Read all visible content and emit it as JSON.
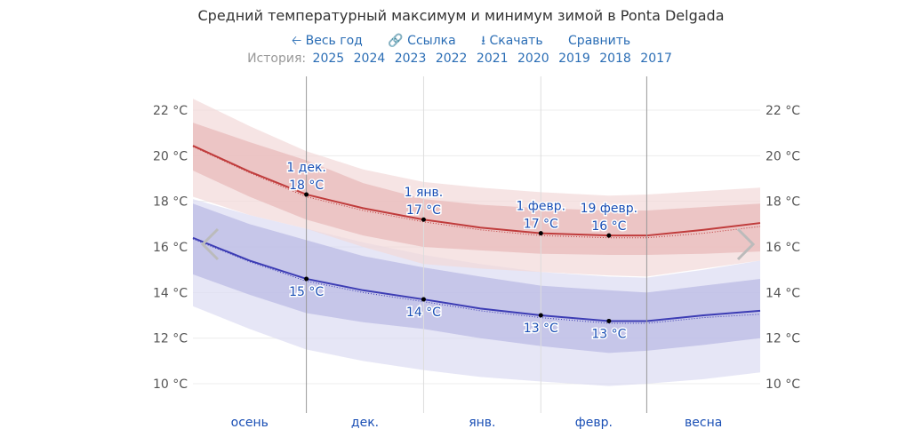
{
  "title": "Средний температурный максимум и минимум зимой в Ponta Delgada",
  "toolbar": {
    "full_year": "Весь год",
    "link": "Ссылка",
    "download": "Скачать",
    "compare": "Сравнить"
  },
  "history": {
    "label": "История:",
    "years": [
      "2025",
      "2024",
      "2023",
      "2022",
      "2021",
      "2020",
      "2019",
      "2018",
      "2017"
    ]
  },
  "chart_data": {
    "type": "area",
    "title": "Средний температурный максимум и минимум зимой в Ponta Delgada",
    "ylim": [
      9.2,
      23
    ],
    "y_ticks": [
      10,
      12,
      14,
      16,
      18,
      20,
      22
    ],
    "y_unit": "°C",
    "y_tick_labels": [
      "10 °C",
      "12 °C",
      "14 °C",
      "16 °C",
      "18 °C",
      "20 °C",
      "22 °C"
    ],
    "grid": true,
    "x_domain": [
      "11-01",
      "03-31"
    ],
    "x_sections": [
      {
        "label": "осень"
      },
      {
        "label": "дек."
      },
      {
        "label": "янв."
      },
      {
        "label": "февр."
      },
      {
        "label": "весна"
      }
    ],
    "x_dividers": [
      {
        "date": "12-01",
        "strong": true
      },
      {
        "date": "01-01",
        "strong": false
      },
      {
        "date": "02-01",
        "strong": false
      },
      {
        "date": "03-01",
        "strong": true
      }
    ],
    "x": [
      "11-01",
      "11-16",
      "12-01",
      "12-16",
      "01-01",
      "01-16",
      "02-01",
      "02-19",
      "03-01",
      "03-16",
      "03-31"
    ],
    "colors": {
      "max": "#c03c3c",
      "max_band_inner": "#e8b8b8",
      "max_band_outer": "#f2d8d8",
      "min": "#3c3cb4",
      "min_band_inner": "#b8b8e4",
      "min_band_outer": "#dcdcf2",
      "label": "#1a4fb5"
    },
    "max": {
      "mean": [
        20.44,
        19.3,
        18.3,
        17.7,
        17.2,
        16.85,
        16.6,
        16.5,
        16.5,
        16.75,
        17.05
      ],
      "p90": [
        22.5,
        21.3,
        20.2,
        19.4,
        18.85,
        18.6,
        18.4,
        18.25,
        18.3,
        18.45,
        18.6
      ],
      "p75": [
        21.45,
        20.6,
        19.8,
        18.8,
        18.1,
        17.85,
        17.7,
        17.6,
        17.6,
        17.75,
        17.9
      ],
      "p25": [
        19.35,
        18.2,
        17.2,
        16.5,
        16.0,
        15.85,
        15.7,
        15.65,
        15.65,
        15.7,
        15.8
      ],
      "p10": [
        18.2,
        17.4,
        16.8,
        16.0,
        15.25,
        15.05,
        14.9,
        14.75,
        14.7,
        15.05,
        15.4
      ],
      "dotted": [
        20.4,
        19.25,
        18.2,
        17.6,
        17.1,
        16.75,
        16.5,
        16.4,
        16.4,
        16.6,
        16.9
      ]
    },
    "min": {
      "mean": [
        16.4,
        15.4,
        14.6,
        14.1,
        13.7,
        13.3,
        13.0,
        12.75,
        12.75,
        13.0,
        13.2
      ],
      "p90": [
        18.1,
        17.4,
        16.8,
        16.2,
        15.65,
        15.25,
        14.9,
        14.7,
        14.65,
        15.0,
        15.4
      ],
      "p75": [
        17.9,
        17.0,
        16.3,
        15.6,
        15.1,
        14.7,
        14.3,
        14.1,
        14.0,
        14.3,
        14.6
      ],
      "p25": [
        14.8,
        13.9,
        13.1,
        12.7,
        12.4,
        12.0,
        11.65,
        11.35,
        11.45,
        11.7,
        12.0
      ],
      "p10": [
        13.4,
        12.4,
        11.5,
        11.0,
        10.6,
        10.3,
        10.1,
        9.9,
        10.0,
        10.2,
        10.5
      ],
      "dotted": [
        16.35,
        15.35,
        14.5,
        14.0,
        13.6,
        13.2,
        12.9,
        12.65,
        12.65,
        12.9,
        13.05
      ]
    },
    "annotations": [
      {
        "series": "max",
        "date": "12-01",
        "value": 18.3,
        "date_label": "1 дек.",
        "value_label": "18 °C"
      },
      {
        "series": "max",
        "date": "01-01",
        "value": 17.2,
        "date_label": "1 янв.",
        "value_label": "17 °C"
      },
      {
        "series": "max",
        "date": "02-01",
        "value": 16.6,
        "date_label": "1 февр.",
        "value_label": "17 °C"
      },
      {
        "series": "max",
        "date": "02-19",
        "value": 16.5,
        "date_label": "19 февр.",
        "value_label": "16 °C"
      },
      {
        "series": "min",
        "date": "12-01",
        "value": 14.6,
        "value_label": "15 °C"
      },
      {
        "series": "min",
        "date": "01-01",
        "value": 13.7,
        "value_label": "14 °C"
      },
      {
        "series": "min",
        "date": "02-01",
        "value": 13.0,
        "value_label": "13 °C"
      },
      {
        "series": "min",
        "date": "02-19",
        "value": 12.75,
        "value_label": "13 °C"
      }
    ]
  }
}
